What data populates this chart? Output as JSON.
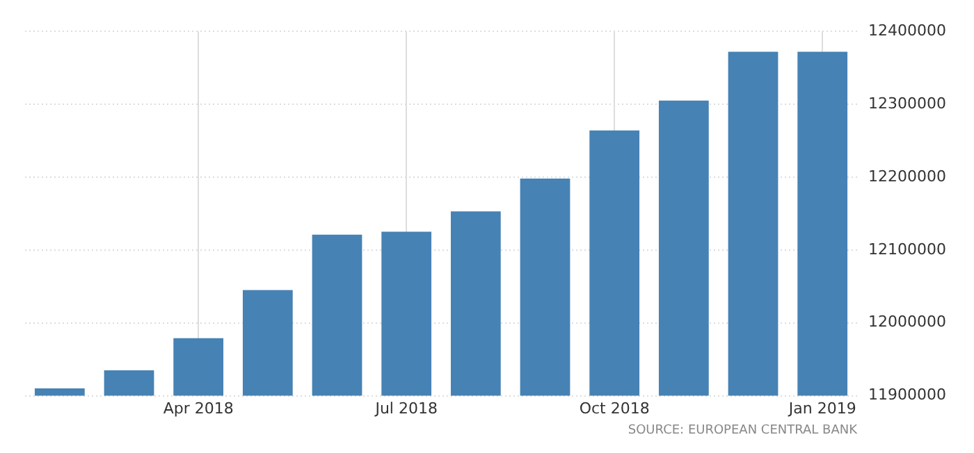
{
  "chart_data": {
    "type": "bar",
    "categories": [
      null,
      null,
      "Apr 2018",
      null,
      null,
      "Jul 2018",
      null,
      null,
      "Oct 2018",
      null,
      null,
      "Jan 2019"
    ],
    "values": [
      11910000,
      11935000,
      11979000,
      12045000,
      12121000,
      12125000,
      12153000,
      12198000,
      12264000,
      12305000,
      12372000,
      12372000
    ],
    "color": "#4682b4",
    "ylim": [
      11900000,
      12400000
    ],
    "yticks": [
      11900000,
      12000000,
      12100000,
      12200000,
      12300000,
      12400000
    ],
    "grid": true,
    "annotations": [
      "SOURCE: EUROPEAN CENTRAL BANK"
    ]
  }
}
